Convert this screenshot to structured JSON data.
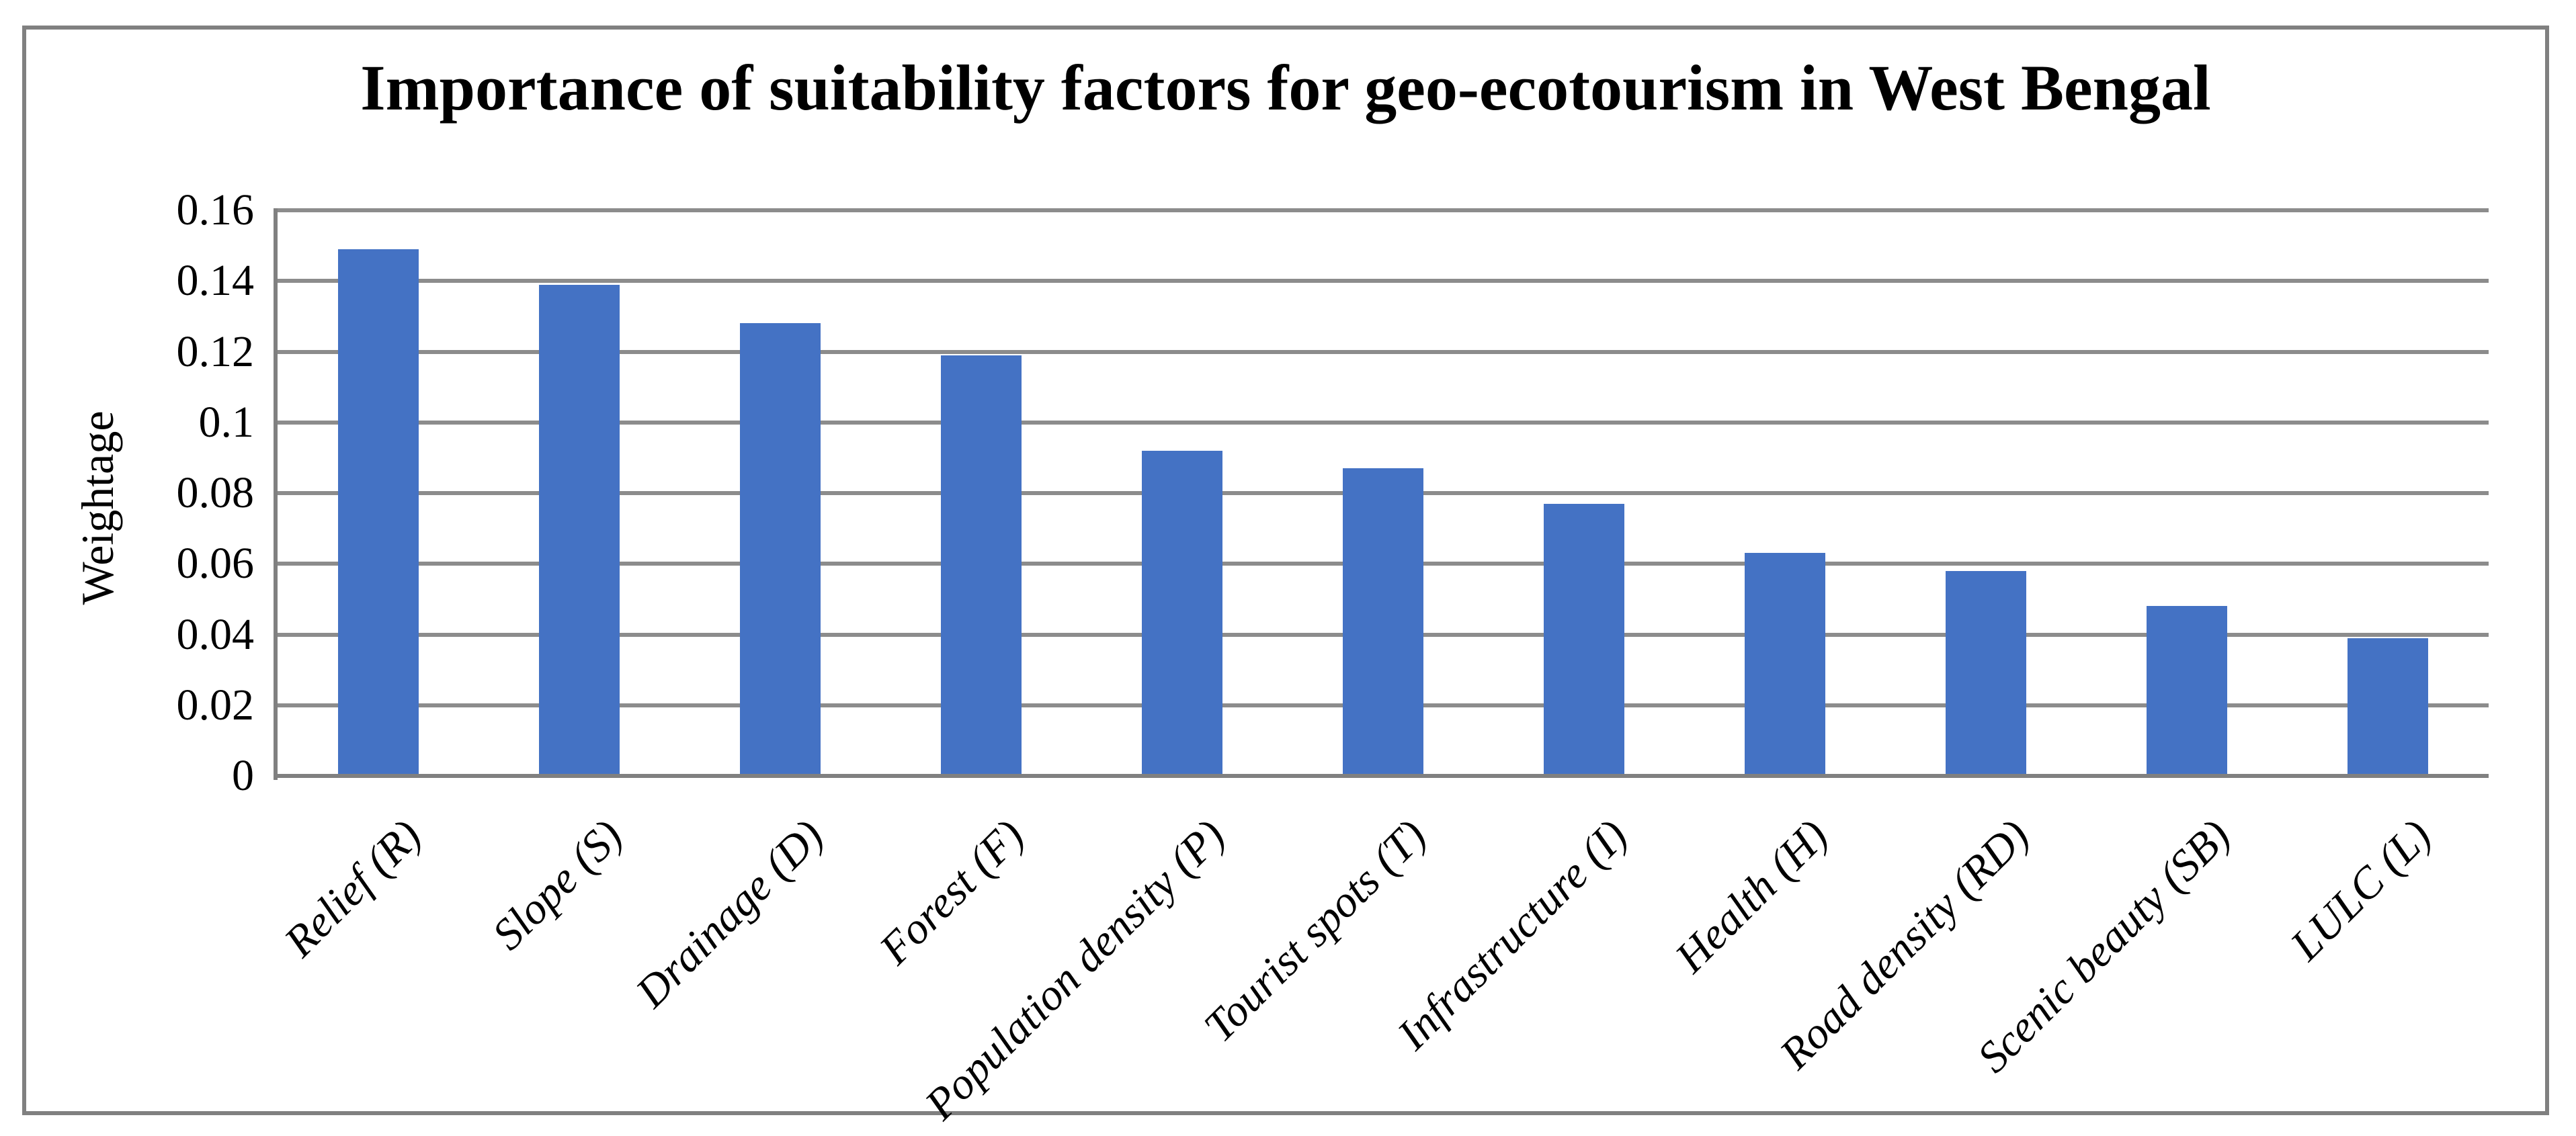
{
  "chart_data": {
    "type": "bar",
    "title": "Importance of suitability factors for geo-ecotourism in West Bengal",
    "xlabel": "",
    "ylabel": "Weightage",
    "categories": [
      "Relief (R)",
      "Slope (S)",
      "Drainage (D)",
      "Forest (F)",
      "Population density (P)",
      "Tourist spots (T)",
      "Infrastructure (I)",
      "Health (H)",
      "Road density (RD)",
      "Scenic beauty (SB)",
      "LULC (L)"
    ],
    "values": [
      0.149,
      0.139,
      0.128,
      0.119,
      0.092,
      0.087,
      0.077,
      0.063,
      0.058,
      0.048,
      0.039
    ],
    "ylim": [
      0,
      0.16
    ],
    "ytick_step": 0.02,
    "ytick_labels": [
      "0.16",
      "0.14",
      "0.12",
      "0.1",
      "0.08",
      "0.06",
      "0.04",
      "0.02",
      "0"
    ],
    "grid": "horizontal",
    "legend_position": "none",
    "x_label_rotation_deg": 45,
    "colors": {
      "bar": "#4472C4",
      "gridline": "#8C8C8C",
      "axis_line": "#808080",
      "frame_border": "#808080",
      "text": "#000000",
      "background": "#FFFFFF"
    }
  }
}
